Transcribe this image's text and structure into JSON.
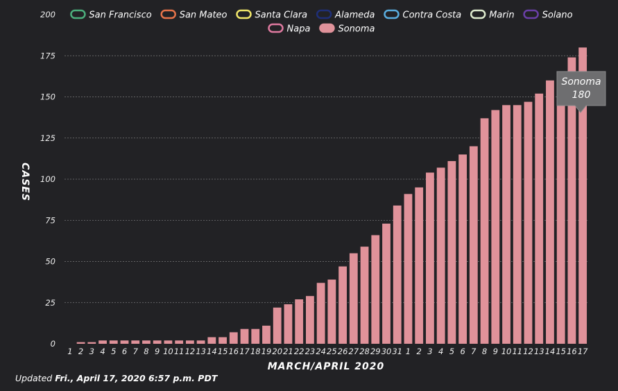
{
  "chart_data": {
    "type": "bar",
    "xlabel": "MARCH/APRIL 2020",
    "ylabel": "CASES",
    "ylim": [
      0,
      200
    ],
    "yticks": [
      0,
      25,
      50,
      75,
      100,
      125,
      150,
      175,
      200
    ],
    "grid": true,
    "legend_position": "top",
    "legend": [
      {
        "name": "San Francisco",
        "color": "#4caf7d"
      },
      {
        "name": "San Mateo",
        "color": "#e8744a"
      },
      {
        "name": "Santa Clara",
        "color": "#f2e86a"
      },
      {
        "name": "Alameda",
        "color": "#1f2f78"
      },
      {
        "name": "Contra Costa",
        "color": "#5aaee0"
      },
      {
        "name": "Marin",
        "color": "#dfeccf"
      },
      {
        "name": "Solano",
        "color": "#6a3fa8"
      },
      {
        "name": "Napa",
        "color": "#e07aa0"
      },
      {
        "name": "Sonoma",
        "color": "#e0929a"
      }
    ],
    "categories": [
      "1",
      "2",
      "3",
      "4",
      "5",
      "6",
      "7",
      "8",
      "9",
      "10",
      "11",
      "12",
      "13",
      "14",
      "15",
      "16",
      "17",
      "18",
      "19",
      "20",
      "21",
      "22",
      "23",
      "24",
      "25",
      "26",
      "27",
      "28",
      "29",
      "30",
      "31",
      "1",
      "2",
      "3",
      "4",
      "5",
      "6",
      "7",
      "8",
      "9",
      "10",
      "11",
      "12",
      "13",
      "14",
      "15",
      "16",
      "17"
    ],
    "series": [
      {
        "name": "Sonoma",
        "color": "#e0929a",
        "values": [
          0,
          1,
          1,
          2,
          2,
          2,
          2,
          2,
          2,
          2,
          2,
          2,
          2,
          4,
          4,
          7,
          9,
          9,
          11,
          22,
          24,
          27,
          29,
          37,
          39,
          47,
          55,
          59,
          66,
          73,
          84,
          91,
          95,
          104,
          107,
          111,
          115,
          120,
          137,
          142,
          145,
          145,
          147,
          152,
          160,
          160,
          174,
          180
        ]
      }
    ],
    "tooltip": {
      "series": "Sonoma",
      "value": "180"
    }
  },
  "footer": {
    "prefix": "Updated",
    "date": "Fri., April 17, 2020 6:57 p.m. PDT"
  }
}
